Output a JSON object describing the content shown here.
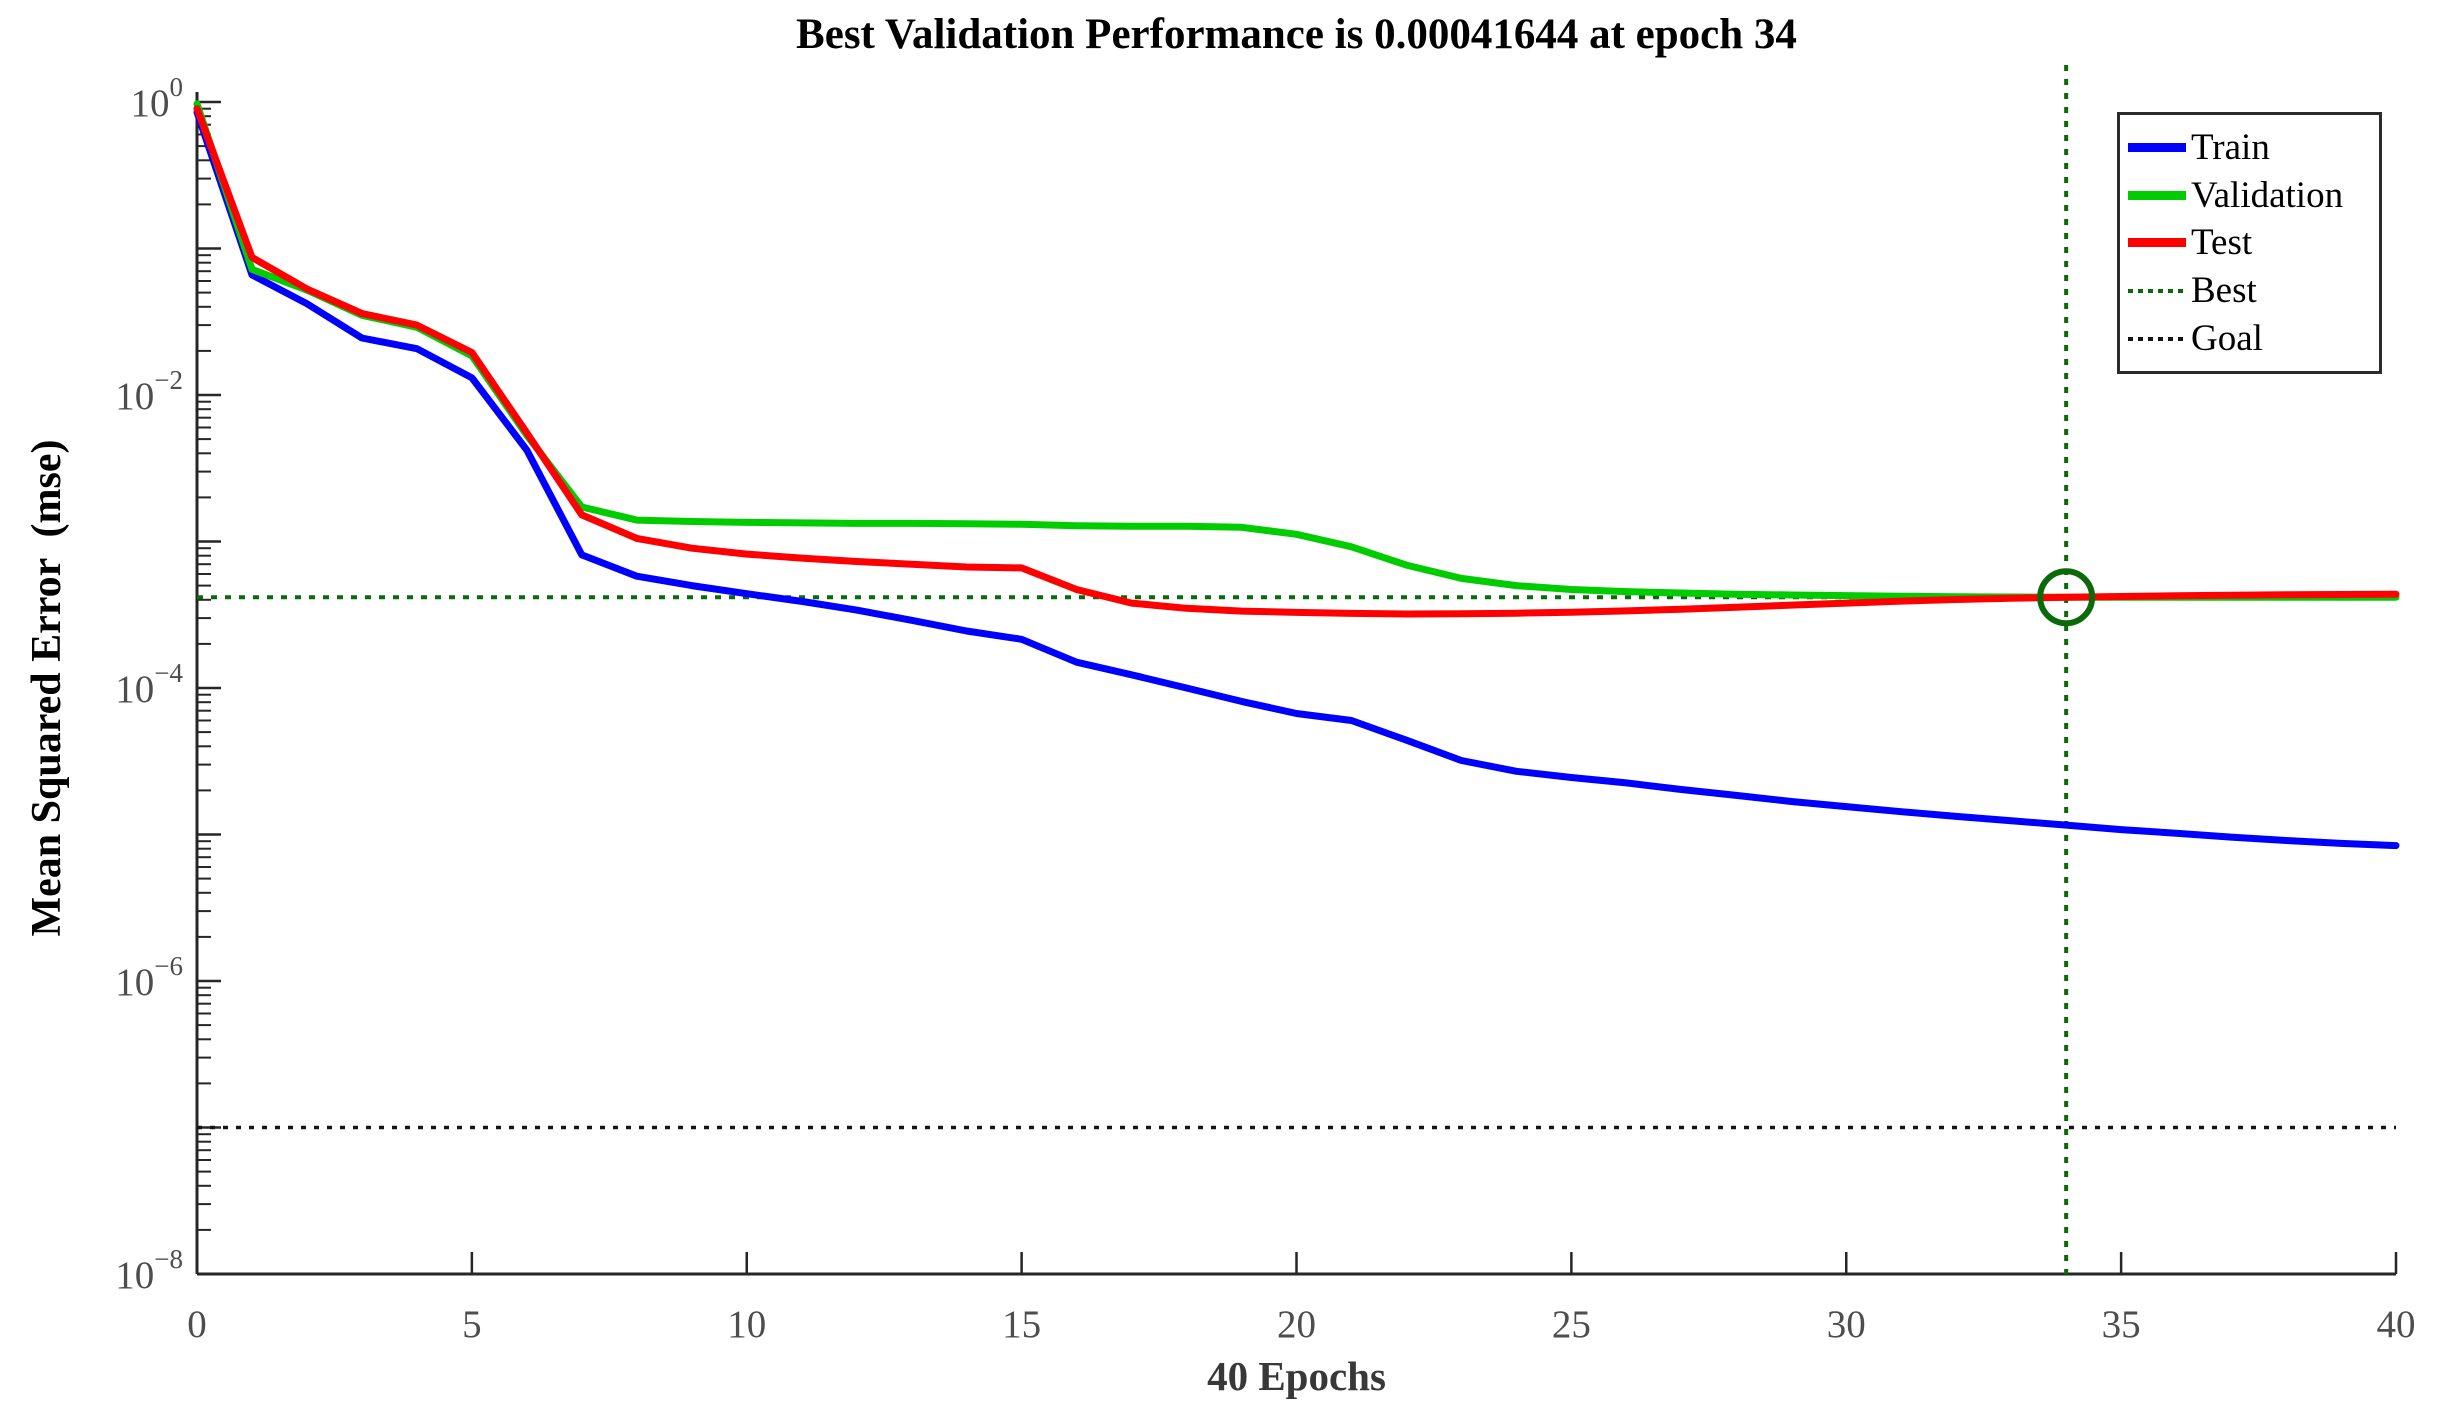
{
  "title": "Best Validation Performance is 0.00041644 at epoch 34",
  "axes": {
    "xlabel": "40 Epochs",
    "ylabel": "Mean Squared Error  (mse)",
    "x_ticks": [
      0,
      5,
      10,
      15,
      20,
      25,
      30,
      35,
      40
    ],
    "y_tick_label_exponents": [
      0,
      -2,
      -4,
      -6,
      -8
    ]
  },
  "legend": {
    "items": [
      {
        "label": "Train",
        "color": "#0000ff",
        "style": "solid"
      },
      {
        "label": "Validation",
        "color": "#00cc00",
        "style": "solid"
      },
      {
        "label": "Test",
        "color": "#ff0000",
        "style": "solid"
      },
      {
        "label": "Best",
        "color": "#0a6a0a",
        "style": "dotted"
      },
      {
        "label": "Goal",
        "color": "#151515",
        "style": "dotted"
      }
    ]
  },
  "colors": {
    "axis": "#262626",
    "tick_label": "#4d4d4d",
    "best_line": "#0a6a0a",
    "goal_line": "#151515"
  },
  "chart_data": {
    "type": "line",
    "title": "Best Validation Performance is 0.00041644 at epoch 34",
    "xlabel": "40 Epochs",
    "ylabel": "Mean Squared Error  (mse)",
    "x_axis": "linear",
    "y_axis": "log",
    "xlim": [
      0,
      40
    ],
    "ylim": [
      1e-08,
      1
    ],
    "grid": false,
    "legend_position": "upper-right",
    "best_point": {
      "epoch": 34,
      "value": 0.00041644
    },
    "goal_value": 1e-07,
    "epochs": [
      0,
      1,
      2,
      3,
      4,
      5,
      6,
      7,
      8,
      9,
      10,
      11,
      12,
      13,
      14,
      15,
      16,
      17,
      18,
      19,
      20,
      21,
      22,
      23,
      24,
      25,
      26,
      27,
      28,
      29,
      30,
      31,
      32,
      33,
      34,
      35,
      36,
      37,
      38,
      39,
      40
    ],
    "series": [
      {
        "name": "Train",
        "color": "#0000ff",
        "values": [
          0.85,
          0.066,
          0.042,
          0.0245,
          0.0207,
          0.0131,
          0.0042,
          0.00081,
          0.00058,
          0.0005,
          0.00044,
          0.00039,
          0.00034,
          0.00029,
          0.000245,
          0.000215,
          0.00015,
          0.000123,
          0.0001,
          8.1e-05,
          6.7e-05,
          6e-05,
          4.4e-05,
          3.2e-05,
          2.7e-05,
          2.45e-05,
          2.25e-05,
          2.03e-05,
          1.85e-05,
          1.68e-05,
          1.55e-05,
          1.43e-05,
          1.33e-05,
          1.24e-05,
          1.16e-05,
          1.08e-05,
          1.02e-05,
          9.6e-06,
          9.1e-06,
          8.7e-06,
          8.4e-06
        ]
      },
      {
        "name": "Validation",
        "color": "#00cc00",
        "values": [
          0.97,
          0.072,
          0.052,
          0.035,
          0.029,
          0.0185,
          0.0053,
          0.00172,
          0.0014,
          0.00137,
          0.00135,
          0.00134,
          0.00133,
          0.00133,
          0.00132,
          0.00131,
          0.00128,
          0.00127,
          0.00127,
          0.00125,
          0.00112,
          0.00092,
          0.00069,
          0.00056,
          0.0005,
          0.00047,
          0.000455,
          0.000445,
          0.000437,
          0.000431,
          0.000427,
          0.000423,
          0.00042,
          0.000418,
          0.00041644,
          0.000417,
          0.000417,
          0.000417,
          0.000417,
          0.000417,
          0.000417
        ]
      },
      {
        "name": "Test",
        "color": "#ff0000",
        "values": [
          0.9,
          0.087,
          0.053,
          0.036,
          0.03,
          0.0195,
          0.0055,
          0.00152,
          0.00105,
          0.0009,
          0.00082,
          0.00077,
          0.00073,
          0.0007,
          0.00067,
          0.00066,
          0.00047,
          0.00038,
          0.00035,
          0.000335,
          0.000328,
          0.000323,
          0.00032,
          0.000321,
          0.000324,
          0.000329,
          0.000336,
          0.000345,
          0.000356,
          0.000368,
          0.00038,
          0.000392,
          0.000402,
          0.00041,
          0.000416,
          0.000421,
          0.000426,
          0.00043,
          0.000433,
          0.000435,
          0.000437
        ]
      }
    ]
  }
}
